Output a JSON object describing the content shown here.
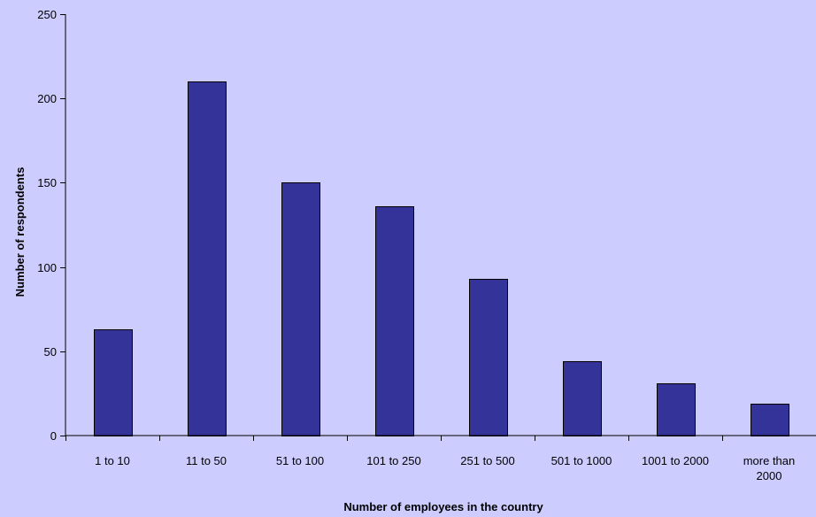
{
  "chart_data": {
    "type": "bar",
    "categories": [
      "1 to 10",
      "11 to 50",
      "51 to 100",
      "101 to 250",
      "251 to 500",
      "501 to 1000",
      "1001 to 2000",
      "more than 2000"
    ],
    "category_label_lines": [
      [
        "1 to 10"
      ],
      [
        "11 to 50"
      ],
      [
        "51 to 100"
      ],
      [
        "101 to 250"
      ],
      [
        "251 to 500"
      ],
      [
        "501 to 1000"
      ],
      [
        "1001 to 2000"
      ],
      [
        "more than",
        "2000"
      ]
    ],
    "values": [
      63,
      210,
      150,
      136,
      93,
      44,
      31,
      19
    ],
    "title": "",
    "xlabel": "Number of employees in the country",
    "ylabel": "Number of respondents",
    "ylim": [
      0,
      250
    ],
    "yticks": [
      0,
      50,
      100,
      150,
      200,
      250
    ],
    "grid": false,
    "legend": "none",
    "colors": {
      "bar": "#333399",
      "background": "#ccccff",
      "axis": "#000000"
    }
  }
}
